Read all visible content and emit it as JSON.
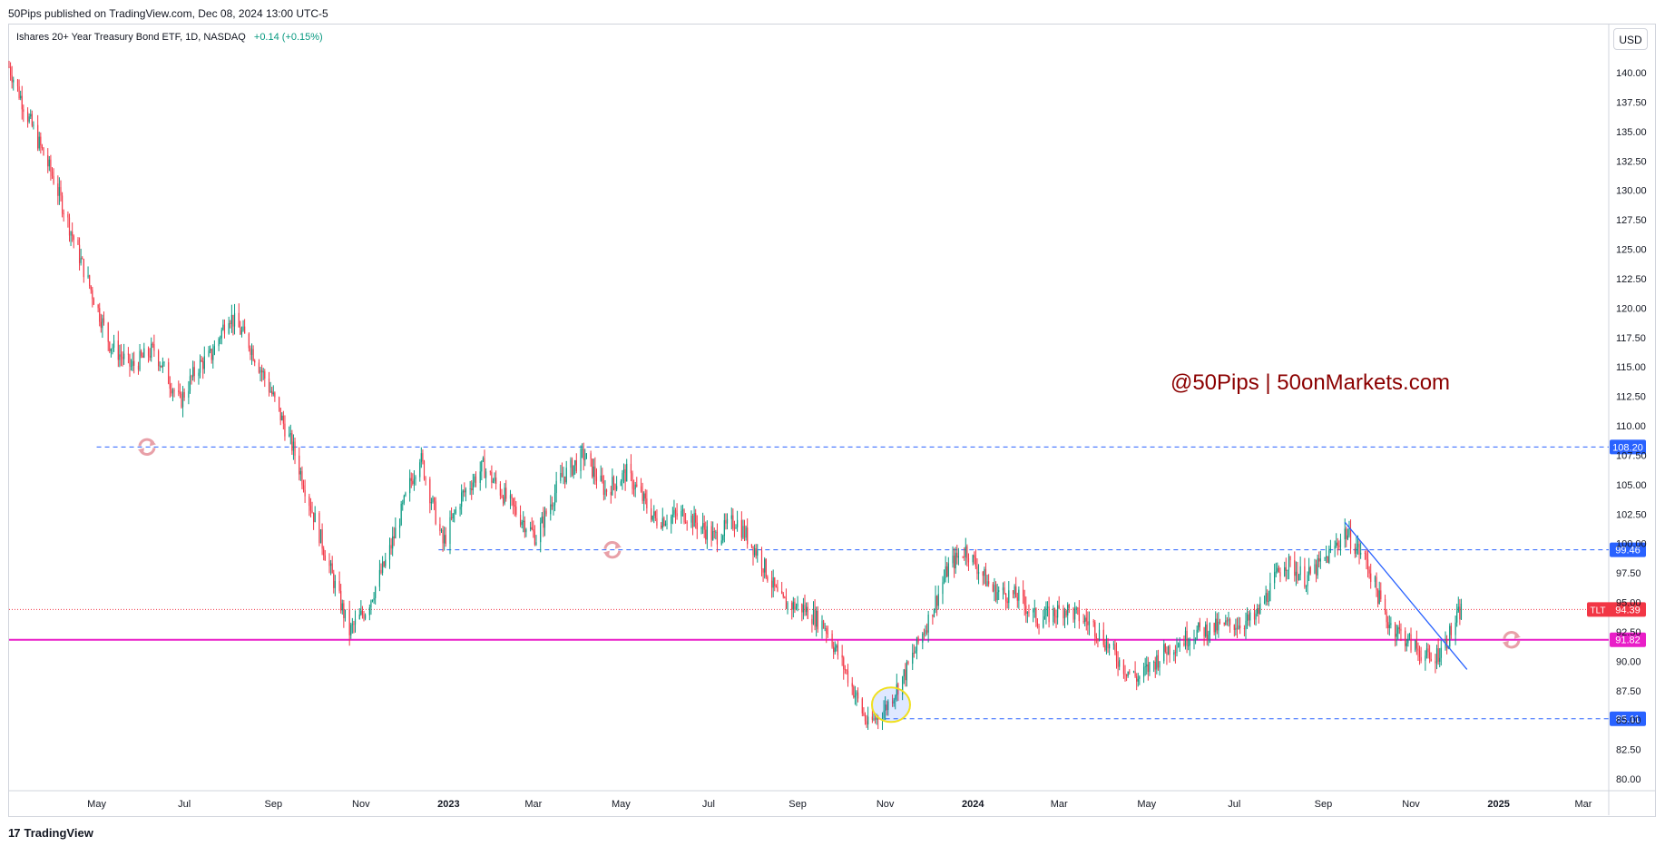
{
  "header": {
    "published_line": "50Pips published on TradingView.com, Dec 08, 2024 13:00 UTC-5"
  },
  "legend": {
    "symbol_line": "Ishares 20+ Year Treasury Bond ETF, 1D, NASDAQ",
    "change": "+0.14 (+0.15%)"
  },
  "currency_button": "USD",
  "watermark": "@50Pips | 50onMarkets.com",
  "footer": {
    "brand": "TradingView"
  },
  "colors": {
    "up": "#089981",
    "down": "#f23645",
    "dashed_level": "#2962ff",
    "support_line": "#e91ec8",
    "trendline": "#2962ff",
    "watermark": "#8b0000",
    "price_badge": "#f23645"
  },
  "chart_data": {
    "type": "candlestick",
    "symbol": "TLT",
    "x_ticks": [
      "May",
      "Jul",
      "Sep",
      "Nov",
      "2023",
      "Mar",
      "May",
      "Jul",
      "Sep",
      "Nov",
      "2024",
      "Mar",
      "May",
      "Jul",
      "Sep",
      "Nov",
      "2025",
      "Mar"
    ],
    "y_ticks": [
      "140.00",
      "137.50",
      "135.00",
      "132.50",
      "130.00",
      "127.50",
      "125.00",
      "122.50",
      "120.00",
      "117.50",
      "115.00",
      "112.50",
      "110.00",
      "107.50",
      "105.00",
      "102.50",
      "100.00",
      "97.50",
      "95.00",
      "92.50",
      "90.00",
      "87.50",
      "85.00",
      "82.50",
      "80.00"
    ],
    "ylim": [
      78.9,
      142.5
    ],
    "price_path": [
      [
        "2022-03-01",
        140.5
      ],
      [
        "2022-03-15",
        136.0
      ],
      [
        "2022-04-01",
        131.0
      ],
      [
        "2022-04-20",
        124.0
      ],
      [
        "2022-05-10",
        117.0
      ],
      [
        "2022-05-25",
        115.0
      ],
      [
        "2022-06-10",
        116.5
      ],
      [
        "2022-06-28",
        112.0
      ],
      [
        "2022-07-10",
        115.0
      ],
      [
        "2022-07-20",
        116.0
      ],
      [
        "2022-08-01",
        119.5
      ],
      [
        "2022-08-15",
        117.0
      ],
      [
        "2022-08-30",
        113.0
      ],
      [
        "2022-09-15",
        108.0
      ],
      [
        "2022-09-30",
        102.0
      ],
      [
        "2022-10-15",
        96.0
      ],
      [
        "2022-10-24",
        92.5
      ],
      [
        "2022-11-05",
        94.5
      ],
      [
        "2022-11-20",
        99.0
      ],
      [
        "2022-12-05",
        105.0
      ],
      [
        "2022-12-12",
        107.5
      ],
      [
        "2022-12-28",
        100.0
      ],
      [
        "2023-01-10",
        104.0
      ],
      [
        "2023-01-25",
        106.5
      ],
      [
        "2023-02-15",
        103.0
      ],
      [
        "2023-03-03",
        100.5
      ],
      [
        "2023-03-20",
        105.5
      ],
      [
        "2023-04-05",
        107.5
      ],
      [
        "2023-04-20",
        104.5
      ],
      [
        "2023-05-05",
        106.0
      ],
      [
        "2023-05-25",
        102.0
      ],
      [
        "2023-06-15",
        102.5
      ],
      [
        "2023-07-05",
        100.5
      ],
      [
        "2023-07-20",
        102.0
      ],
      [
        "2023-08-05",
        99.0
      ],
      [
        "2023-08-20",
        95.0
      ],
      [
        "2023-09-05",
        94.5
      ],
      [
        "2023-09-20",
        93.0
      ],
      [
        "2023-10-05",
        89.0
      ],
      [
        "2023-10-20",
        84.5
      ],
      [
        "2023-11-01",
        86.0
      ],
      [
        "2023-11-15",
        89.0
      ],
      [
        "2023-12-01",
        93.5
      ],
      [
        "2023-12-15",
        98.0
      ],
      [
        "2023-12-27",
        99.5
      ],
      [
        "2024-01-15",
        96.0
      ],
      [
        "2024-02-01",
        95.5
      ],
      [
        "2024-02-15",
        93.5
      ],
      [
        "2024-03-05",
        94.5
      ],
      [
        "2024-03-25",
        93.0
      ],
      [
        "2024-04-15",
        89.5
      ],
      [
        "2024-04-25",
        88.5
      ],
      [
        "2024-05-15",
        91.0
      ],
      [
        "2024-06-05",
        92.5
      ],
      [
        "2024-06-25",
        93.0
      ],
      [
        "2024-07-15",
        93.5
      ],
      [
        "2024-08-05",
        98.5
      ],
      [
        "2024-08-20",
        97.0
      ],
      [
        "2024-09-05",
        99.0
      ],
      [
        "2024-09-16",
        101.0
      ],
      [
        "2024-10-01",
        98.5
      ],
      [
        "2024-10-15",
        93.5
      ],
      [
        "2024-11-01",
        91.5
      ],
      [
        "2024-11-15",
        90.0
      ],
      [
        "2024-11-25",
        91.5
      ],
      [
        "2024-12-06",
        94.39
      ]
    ],
    "levels": [
      {
        "label": "108.20",
        "price": 108.2,
        "from": "2022-05-01",
        "style": "dashed"
      },
      {
        "label": "99.46",
        "price": 99.46,
        "from": "2022-12-25",
        "style": "dashed"
      },
      {
        "label": "85.11",
        "price": 85.11,
        "from": "2023-11-01",
        "style": "dashed"
      },
      {
        "label": "91.82",
        "price": 91.82,
        "from": "2022-02-15",
        "style": "solid"
      }
    ],
    "current_price": {
      "symbol": "TLT",
      "label": "94.39",
      "price": 94.39
    },
    "trendline": {
      "from": [
        "2024-09-16",
        101.8
      ],
      "to": [
        "2024-12-10",
        89.3
      ]
    },
    "highlight_circle": {
      "date": "2023-11-05",
      "price": 86.3
    },
    "refresh_markers": [
      {
        "date": "2022-06-05",
        "price": 108.2
      },
      {
        "date": "2023-04-25",
        "price": 99.46
      },
      {
        "date": "2025-01-10",
        "price": 91.82
      }
    ]
  }
}
